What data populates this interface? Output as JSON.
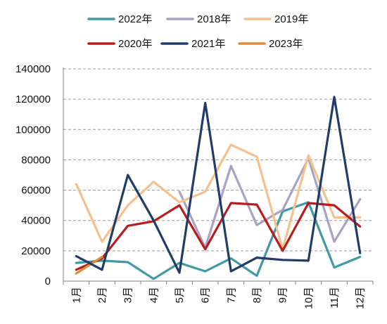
{
  "chart_data": {
    "type": "line",
    "categories": [
      "1月",
      "2月",
      "3月",
      "4月",
      "5月",
      "6月",
      "7月",
      "8月",
      "9月",
      "10月",
      "11月",
      "12月"
    ],
    "ylim": [
      0,
      140000
    ],
    "yticks": [
      0,
      20000,
      40000,
      60000,
      80000,
      100000,
      120000,
      140000
    ],
    "ytick_labels": [
      "0",
      "20000",
      "40000",
      "60000",
      "80000",
      "100000",
      "120000",
      "140000"
    ],
    "grid": "horizontal dashed",
    "legend_position": "top",
    "series": [
      {
        "name": "2022年",
        "color": "#3f9aa5",
        "values": [
          12000,
          13500,
          12500,
          1500,
          12000,
          6500,
          15000,
          3500,
          46000,
          52000,
          9000,
          16000
        ]
      },
      {
        "name": "2018年",
        "color": "#a9a1c6",
        "values": [
          null,
          null,
          null,
          null,
          59000,
          22000,
          76000,
          37000,
          47000,
          81000,
          26000,
          54000
        ]
      },
      {
        "name": "2019年",
        "color": "#f5c08e",
        "values": [
          64000,
          26000,
          50000,
          65500,
          52000,
          59000,
          90000,
          82000,
          21000,
          83000,
          42000,
          42000
        ]
      },
      {
        "name": "2020年",
        "color": "#b81d1d",
        "values": [
          7500,
          15000,
          36500,
          39500,
          50000,
          21000,
          51500,
          50500,
          20000,
          51500,
          50000,
          36000
        ]
      },
      {
        "name": "2021年",
        "color": "#1f3d68",
        "values": [
          16500,
          7500,
          70000,
          40000,
          5500,
          117500,
          6500,
          15500,
          14000,
          13500,
          121500,
          18500
        ]
      },
      {
        "name": "2023年",
        "color": "#e08a3c",
        "values": [
          5000,
          16000,
          null,
          null,
          null,
          null,
          null,
          null,
          null,
          null,
          null,
          null
        ]
      }
    ]
  }
}
